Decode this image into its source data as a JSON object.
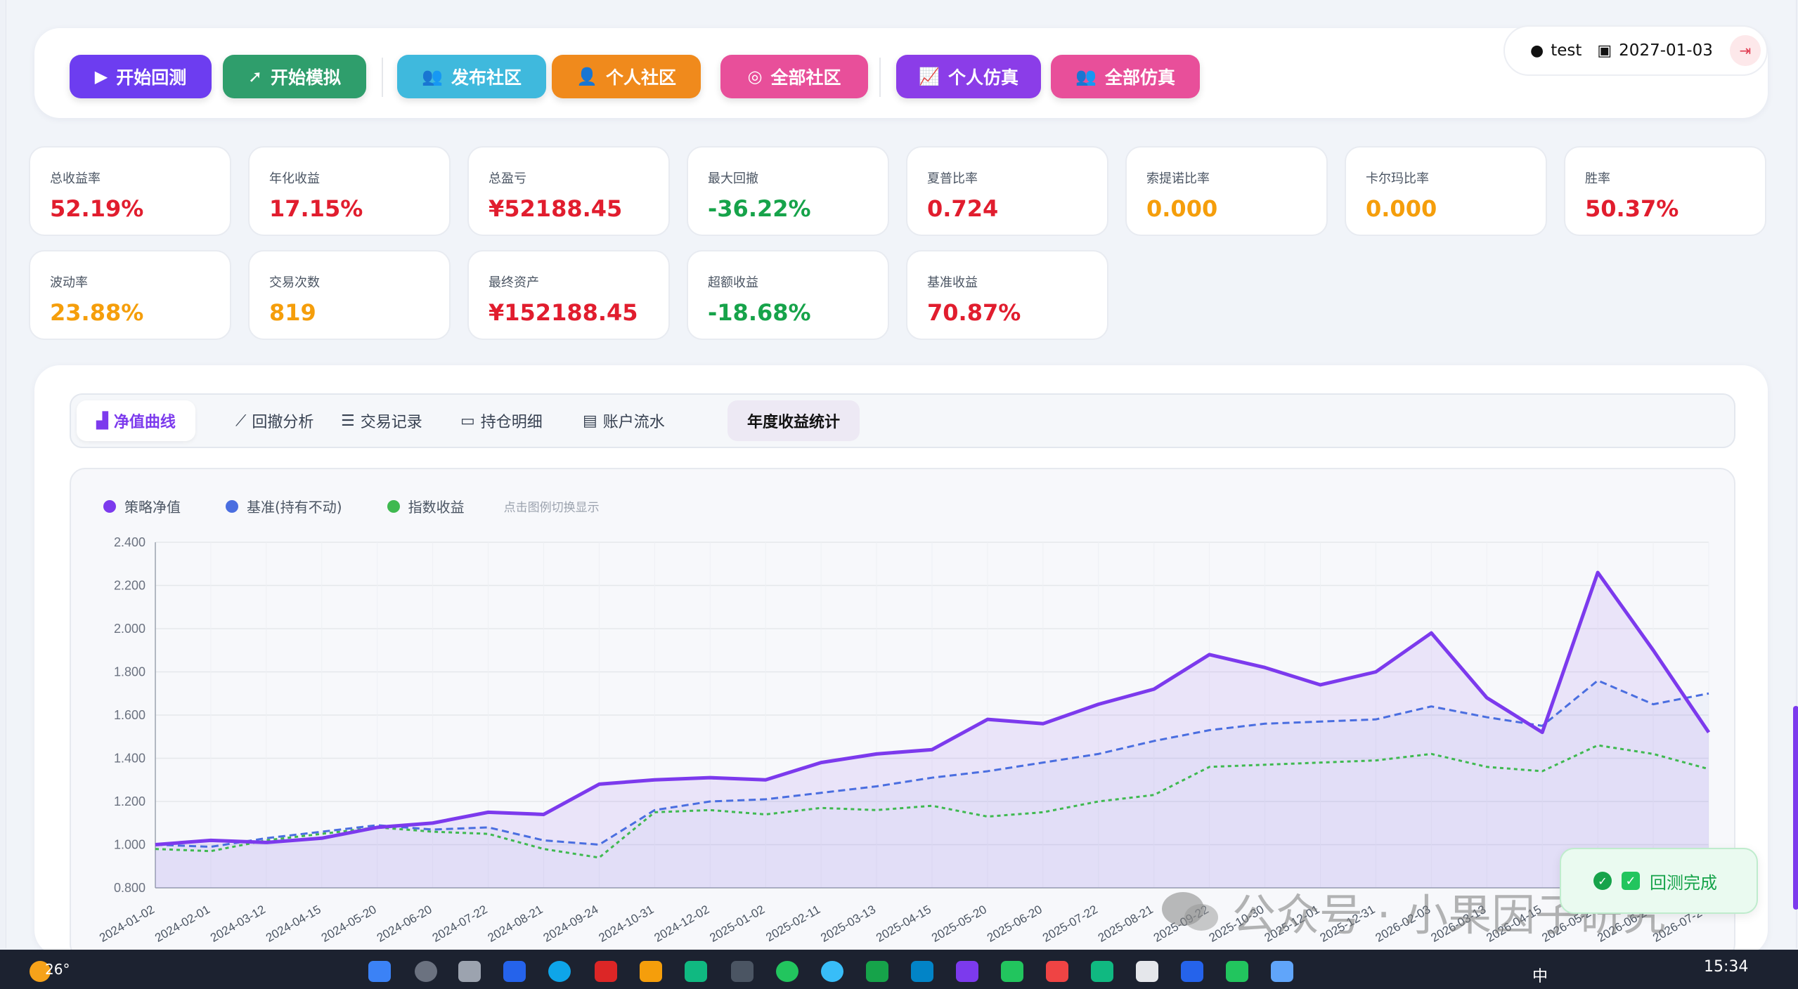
{
  "toolbar": {
    "buttons": [
      {
        "label": "开始回测",
        "icon": "play-icon",
        "color": "#6d3df0"
      },
      {
        "label": "开始模拟",
        "icon": "rocket-icon",
        "color": "#2f9e6c"
      },
      {
        "label": "发布社区",
        "icon": "users-icon",
        "color": "#3fb9dd"
      },
      {
        "label": "个人社区",
        "icon": "user-plus-icon",
        "color": "#f08a1c"
      },
      {
        "label": "全部社区",
        "icon": "globe-icon",
        "color": "#e84f9a"
      },
      {
        "label": "个人仿真",
        "icon": "chart-line-icon",
        "color": "#8b3de8"
      },
      {
        "label": "全部仿真",
        "icon": "users-icon",
        "color": "#e84f9a"
      }
    ],
    "user": {
      "name": "test",
      "date": "2027-01-03"
    }
  },
  "metrics": [
    {
      "label": "总收益率",
      "value": "52.19%",
      "tone": "red"
    },
    {
      "label": "年化收益",
      "value": "17.15%",
      "tone": "red"
    },
    {
      "label": "总盈亏",
      "value": "¥52188.45",
      "tone": "red"
    },
    {
      "label": "最大回撤",
      "value": "-36.22%",
      "tone": "green"
    },
    {
      "label": "夏普比率",
      "value": "0.724",
      "tone": "red"
    },
    {
      "label": "索提诺比率",
      "value": "0.000",
      "tone": "orange"
    },
    {
      "label": "卡尔玛比率",
      "value": "0.000",
      "tone": "orange"
    },
    {
      "label": "胜率",
      "value": "50.37%",
      "tone": "red"
    },
    {
      "label": "波动率",
      "value": "23.88%",
      "tone": "orange"
    },
    {
      "label": "交易次数",
      "value": "819",
      "tone": "orange"
    },
    {
      "label": "最终资产",
      "value": "¥152188.45",
      "tone": "red"
    },
    {
      "label": "超额收益",
      "value": "-18.68%",
      "tone": "green"
    },
    {
      "label": "基准收益",
      "value": "70.87%",
      "tone": "red"
    }
  ],
  "tabs": [
    {
      "label": "净值曲线",
      "icon": "area-chart-icon"
    },
    {
      "label": "回撤分析",
      "icon": "chart-line-icon"
    },
    {
      "label": "交易记录",
      "icon": "list-icon"
    },
    {
      "label": "持仓明细",
      "icon": "briefcase-icon"
    },
    {
      "label": "账户流水",
      "icon": "ledger-icon"
    },
    {
      "label": "年度收益统计",
      "icon": ""
    }
  ],
  "legend_hint": "点击图例切换显示",
  "chart_data": {
    "type": "line",
    "ylim": [
      0.8,
      2.4
    ],
    "yticks": [
      "2.400",
      "2.200",
      "2.000",
      "1.800",
      "1.600",
      "1.400",
      "1.200",
      "1.000",
      "0.800"
    ],
    "x": [
      "2024-01-02",
      "2024-02-01",
      "2024-03-12",
      "2024-04-15",
      "2024-05-20",
      "2024-06-20",
      "2024-07-22",
      "2024-08-21",
      "2024-09-24",
      "2024-10-31",
      "2024-12-02",
      "2025-01-02",
      "2025-02-11",
      "2025-03-13",
      "2025-04-15",
      "2025-05-20",
      "2025-06-20",
      "2025-07-22",
      "2025-08-21",
      "2025-09-22",
      "2025-10-30",
      "2025-12-01",
      "2025-12-31",
      "2026-02-03",
      "2026-03-13",
      "2026-04-15",
      "2026-05-20",
      "2026-06-24",
      "2026-07-27"
    ],
    "series": [
      {
        "name": "策略净值",
        "color": "#7c3aed",
        "values": [
          1.0,
          1.02,
          1.01,
          1.03,
          1.08,
          1.1,
          1.15,
          1.14,
          1.28,
          1.3,
          1.31,
          1.3,
          1.38,
          1.42,
          1.44,
          1.58,
          1.56,
          1.65,
          1.72,
          1.88,
          1.82,
          1.74,
          1.8,
          1.98,
          1.68,
          1.52,
          2.26,
          1.9,
          1.52
        ]
      },
      {
        "name": "基准(持有不动)",
        "color": "#4a6ee0",
        "values": [
          1.0,
          0.99,
          1.03,
          1.06,
          1.09,
          1.07,
          1.08,
          1.02,
          1.0,
          1.16,
          1.2,
          1.21,
          1.24,
          1.27,
          1.31,
          1.34,
          1.38,
          1.42,
          1.48,
          1.53,
          1.56,
          1.57,
          1.58,
          1.64,
          1.59,
          1.55,
          1.76,
          1.65,
          1.7
        ]
      },
      {
        "name": "指数收益",
        "color": "#3fb950",
        "values": [
          0.98,
          0.97,
          1.02,
          1.05,
          1.08,
          1.06,
          1.05,
          0.98,
          0.94,
          1.15,
          1.16,
          1.14,
          1.17,
          1.16,
          1.18,
          1.13,
          1.15,
          1.2,
          1.23,
          1.36,
          1.37,
          1.38,
          1.39,
          1.42,
          1.36,
          1.34,
          1.46,
          1.42,
          1.35
        ]
      }
    ]
  },
  "toast": "回测完成",
  "watermark": "公众号 · 小果因子研究",
  "taskbar": {
    "temp": "26°",
    "time": "15:34",
    "ime": "中"
  }
}
